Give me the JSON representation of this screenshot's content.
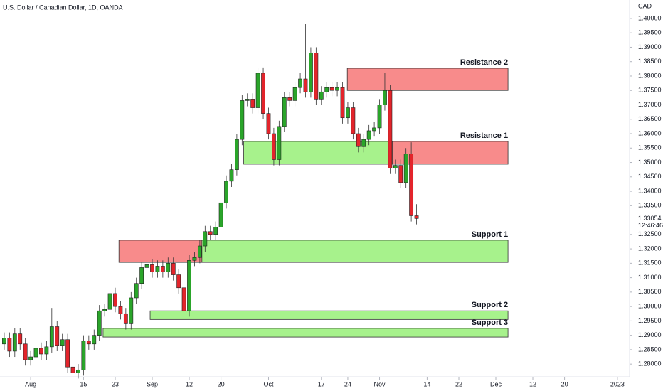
{
  "chart_data": {
    "type": "candlestick",
    "title": "U.S. Dollar / Canadian Dollar, 1D, OANDA",
    "currency": "CAD",
    "countdown": "12:46:46",
    "up_color": "#2aa52a",
    "down_color": "#e3242b",
    "x": [
      -5,
      -4,
      -3,
      -2,
      -1,
      0,
      1,
      2,
      3,
      4,
      5,
      6,
      7,
      8,
      9,
      10,
      11,
      12,
      13,
      14,
      15,
      16,
      17,
      18,
      19,
      20,
      21,
      22,
      23,
      24,
      25,
      26,
      27,
      28,
      29,
      30,
      31,
      32,
      33,
      34,
      35,
      36,
      37,
      38,
      39,
      40,
      41,
      42,
      43,
      44,
      45,
      46,
      47,
      48,
      49,
      50,
      51,
      52,
      53,
      54,
      55,
      56,
      57,
      58,
      59,
      60,
      61,
      62,
      63,
      64,
      65,
      66,
      67,
      68,
      69,
      70,
      71,
      72,
      73
    ],
    "open": [
      1.287,
      1.289,
      1.2845,
      1.2905,
      1.287,
      1.2815,
      1.2825,
      1.2855,
      1.2835,
      1.286,
      1.293,
      1.2865,
      1.2885,
      1.279,
      1.277,
      1.278,
      1.288,
      1.287,
      1.29,
      1.2985,
      1.299,
      1.3045,
      1.3,
      1.2975,
      1.294,
      1.303,
      1.308,
      1.3135,
      1.3145,
      1.312,
      1.314,
      1.312,
      1.315,
      1.311,
      1.3065,
      1.2985,
      1.316,
      1.317,
      1.321,
      1.326,
      1.325,
      1.3275,
      1.336,
      1.3435,
      1.3475,
      1.358,
      1.3715,
      1.372,
      1.369,
      1.381,
      1.367,
      1.36,
      1.351,
      1.3625,
      1.3725,
      1.3715,
      1.376,
      1.379,
      1.3745,
      1.388,
      1.372,
      1.3745,
      1.376,
      1.375,
      1.376,
      1.3655,
      1.369,
      1.36,
      1.3555,
      1.358,
      1.361,
      1.362,
      1.37,
      1.375,
      1.348,
      1.349,
      1.343,
      1.353,
      1.3315
    ],
    "high": [
      1.291,
      1.291,
      1.2925,
      1.2925,
      1.289,
      1.2845,
      1.2875,
      1.2875,
      1.288,
      1.2995,
      1.295,
      1.2905,
      1.2905,
      1.281,
      1.28,
      1.29,
      1.29,
      1.292,
      1.3005,
      1.301,
      1.3065,
      1.3065,
      1.302,
      1.2995,
      1.305,
      1.31,
      1.3155,
      1.3165,
      1.3165,
      1.316,
      1.316,
      1.317,
      1.317,
      1.313,
      1.3085,
      1.318,
      1.319,
      1.323,
      1.328,
      1.328,
      1.3295,
      1.338,
      1.3455,
      1.3495,
      1.36,
      1.3735,
      1.374,
      1.374,
      1.383,
      1.383,
      1.369,
      1.362,
      1.3645,
      1.3745,
      1.3745,
      1.378,
      1.381,
      1.398,
      1.39,
      1.39,
      1.3765,
      1.378,
      1.378,
      1.378,
      1.378,
      1.371,
      1.371,
      1.362,
      1.36,
      1.363,
      1.364,
      1.372,
      1.381,
      1.377,
      1.351,
      1.351,
      1.355,
      1.357,
      1.3355
    ],
    "low": [
      1.285,
      1.2825,
      1.2825,
      1.285,
      1.2795,
      1.2795,
      1.2805,
      1.2815,
      1.2815,
      1.284,
      1.2845,
      1.2845,
      1.277,
      1.275,
      1.275,
      1.276,
      1.285,
      1.285,
      1.288,
      1.2965,
      1.297,
      1.298,
      1.2955,
      1.292,
      1.292,
      1.301,
      1.306,
      1.3115,
      1.31,
      1.31,
      1.31,
      1.31,
      1.309,
      1.3045,
      1.2965,
      1.2965,
      1.314,
      1.315,
      1.319,
      1.323,
      1.323,
      1.3255,
      1.334,
      1.3415,
      1.3455,
      1.356,
      1.3695,
      1.367,
      1.367,
      1.365,
      1.358,
      1.349,
      1.349,
      1.3605,
      1.3695,
      1.3695,
      1.374,
      1.3725,
      1.3725,
      1.37,
      1.37,
      1.3725,
      1.373,
      1.373,
      1.3635,
      1.3635,
      1.358,
      1.3535,
      1.3535,
      1.356,
      1.359,
      1.36,
      1.368,
      1.346,
      1.346,
      1.341,
      1.341,
      1.3295,
      1.3285
    ],
    "close": [
      1.289,
      1.2845,
      1.2905,
      1.287,
      1.2815,
      1.2825,
      1.2855,
      1.2835,
      1.286,
      1.293,
      1.2865,
      1.2885,
      1.279,
      1.277,
      1.278,
      1.288,
      1.287,
      1.29,
      1.2985,
      1.299,
      1.3045,
      1.3,
      1.2975,
      1.294,
      1.303,
      1.308,
      1.3135,
      1.3145,
      1.312,
      1.314,
      1.312,
      1.315,
      1.311,
      1.3065,
      1.2985,
      1.316,
      1.317,
      1.321,
      1.326,
      1.325,
      1.3275,
      1.336,
      1.3435,
      1.3475,
      1.358,
      1.3715,
      1.372,
      1.369,
      1.381,
      1.367,
      1.36,
      1.351,
      1.3625,
      1.3725,
      1.3715,
      1.376,
      1.379,
      1.3745,
      1.388,
      1.372,
      1.3745,
      1.376,
      1.375,
      1.376,
      1.3655,
      1.369,
      1.36,
      1.3555,
      1.358,
      1.361,
      1.362,
      1.37,
      1.375,
      1.348,
      1.349,
      1.343,
      1.353,
      1.3315,
      1.33054
    ],
    "zones": [
      {
        "label": "Resistance 2",
        "color": "#f88b8b",
        "top": 1.3827,
        "bottom": 1.375,
        "start": 59.9,
        "end": 90.3
      },
      {
        "color": "#a7f28c",
        "top": 1.3573,
        "bottom": 1.3494,
        "start": 40.3,
        "end": 68.4
      },
      {
        "label": "Resistance 1",
        "color": "#f88b8b",
        "top": 1.3573,
        "bottom": 1.3494,
        "start": 68.4,
        "end": 90.3
      },
      {
        "color": "#f88b8b",
        "top": 1.323,
        "bottom": 1.3153,
        "start": 16.7,
        "end": 32.4
      },
      {
        "label": "Support 1",
        "color": "#a7f28c",
        "top": 1.323,
        "bottom": 1.3153,
        "start": 32.4,
        "end": 90.3
      },
      {
        "label": "Support 2",
        "color": "#a7f28c",
        "top": 1.2985,
        "bottom": 1.2955,
        "start": 22.6,
        "end": 90.3
      },
      {
        "label": "Support 3",
        "color": "#a7f28c",
        "top": 1.2924,
        "bottom": 1.2894,
        "start": 13.7,
        "end": 90.3
      }
    ],
    "xlim": [
      -5.8,
      113.3
    ],
    "xticks": [
      {
        "value": 0,
        "label": "Aug"
      },
      {
        "value": 10,
        "label": "15"
      },
      {
        "value": 16,
        "label": "23"
      },
      {
        "value": 23,
        "label": "Sep"
      },
      {
        "value": 30,
        "label": "12"
      },
      {
        "value": 36,
        "label": "20"
      },
      {
        "value": 45,
        "label": "Oct"
      },
      {
        "value": 55,
        "label": "17"
      },
      {
        "value": 60,
        "label": "24"
      },
      {
        "value": 66,
        "label": "Nov"
      },
      {
        "value": 75,
        "label": "14"
      },
      {
        "value": 81,
        "label": "22"
      },
      {
        "value": 88,
        "label": "Dec"
      },
      {
        "value": 95,
        "label": "12"
      },
      {
        "value": 101,
        "label": "20"
      },
      {
        "value": 111,
        "label": "2023"
      }
    ],
    "ylim": [
      1.2756,
      1.4064
    ],
    "yticks": [
      {
        "value": 1.28,
        "label": "1.28000"
      },
      {
        "value": 1.285,
        "label": "1.28500"
      },
      {
        "value": 1.29,
        "label": "1.29000"
      },
      {
        "value": 1.295,
        "label": "1.29500"
      },
      {
        "value": 1.3,
        "label": "1.30000"
      },
      {
        "value": 1.305,
        "label": "1.30500"
      },
      {
        "value": 1.31,
        "label": "1.31000"
      },
      {
        "value": 1.315,
        "label": "1.31500"
      },
      {
        "value": 1.32,
        "label": "1.32000"
      },
      {
        "value": 1.325,
        "label": "1.32500"
      },
      {
        "value": 1.335,
        "label": "1.33500"
      },
      {
        "value": 1.34,
        "label": "1.34000"
      },
      {
        "value": 1.345,
        "label": "1.34500"
      },
      {
        "value": 1.35,
        "label": "1.35000"
      },
      {
        "value": 1.355,
        "label": "1.35500"
      },
      {
        "value": 1.36,
        "label": "1.36000"
      },
      {
        "value": 1.365,
        "label": "1.36500"
      },
      {
        "value": 1.37,
        "label": "1.37000"
      },
      {
        "value": 1.375,
        "label": "1.37500"
      },
      {
        "value": 1.38,
        "label": "1.38000"
      },
      {
        "value": 1.385,
        "label": "1.38500"
      },
      {
        "value": 1.39,
        "label": "1.39000"
      },
      {
        "value": 1.395,
        "label": "1.39500"
      },
      {
        "value": 1.4,
        "label": "1.40000"
      }
    ]
  }
}
